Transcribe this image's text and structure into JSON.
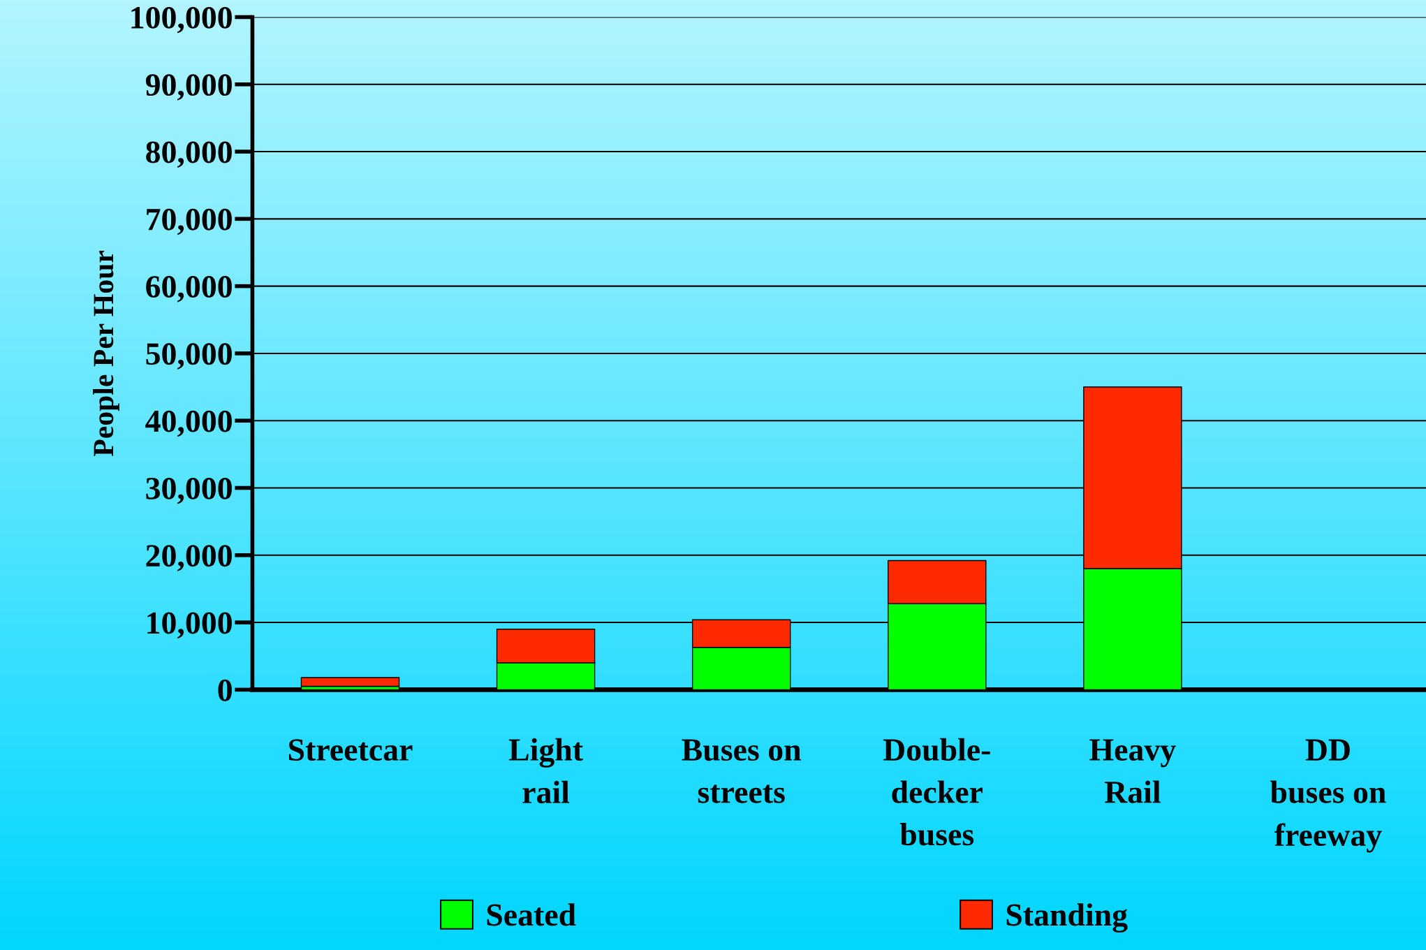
{
  "chart_data": {
    "type": "bar",
    "stacked": true,
    "ylabel": "People Per Hour",
    "categories": [
      "Streetcar",
      "Light\nrail",
      "Buses on\nstreets",
      "Double-\ndecker\nbuses",
      "Heavy\nRail",
      "DD\nbuses on\nfreeway"
    ],
    "series": [
      {
        "name": "Seated",
        "color": "#00ff00",
        "values": [
          500,
          4000,
          6300,
          12800,
          18000,
          null
        ]
      },
      {
        "name": "Standing",
        "color": "#ff2a00",
        "values": [
          1300,
          5000,
          4100,
          6400,
          27000,
          null
        ]
      }
    ],
    "ylim": [
      0,
      100000
    ],
    "yticks": [
      {
        "value": 0,
        "label": "0"
      },
      {
        "value": 10000,
        "label": "10,000"
      },
      {
        "value": 20000,
        "label": "20,000"
      },
      {
        "value": 30000,
        "label": "30,000"
      },
      {
        "value": 40000,
        "label": "40,000"
      },
      {
        "value": 50000,
        "label": "50,000"
      },
      {
        "value": 60000,
        "label": "60,000"
      },
      {
        "value": 70000,
        "label": "70,000"
      },
      {
        "value": 80000,
        "label": "80,000"
      },
      {
        "value": 90000,
        "label": "90,000"
      },
      {
        "value": 100000,
        "label": "100,000"
      }
    ],
    "grid": "y",
    "legend": "bottom"
  }
}
